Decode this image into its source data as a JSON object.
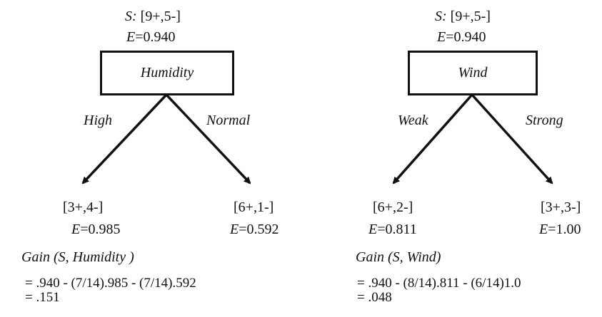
{
  "left_tree": {
    "root_set_prefix": "S:",
    "root_set_value": "[9+,5-]",
    "root_entropy_prefix": "E",
    "root_entropy_value": "=0.940",
    "attribute": "Humidity",
    "branches": [
      {
        "label": "High",
        "set": "[3+,4-]",
        "entropy_prefix": "E",
        "entropy_value": "=0.985"
      },
      {
        "label": "Normal",
        "set": "[6+,1-]",
        "entropy_prefix": "E",
        "entropy_value": "=0.592"
      }
    ],
    "gain_label": "Gain (S,  Humidity  )",
    "gain_formula": "= .940 - (7/14).985 - (7/14).592",
    "gain_result": "= .151"
  },
  "right_tree": {
    "root_set_prefix": "S:",
    "root_set_value": "[9+,5-]",
    "root_entropy_prefix": "E",
    "root_entropy_value": "=0.940",
    "attribute": "Wind",
    "branches": [
      {
        "label": "Weak",
        "set": "[6+,2-]",
        "entropy_prefix": "E",
        "entropy_value": "=0.811"
      },
      {
        "label": "Strong",
        "set": "[3+,3-]",
        "entropy_prefix": "E",
        "entropy_value": "=1.00"
      }
    ],
    "gain_label": "Gain (S, Wind)",
    "gain_formula": "= .940 - (8/14).811 - (6/14)1.0",
    "gain_result": "= .048"
  },
  "colors": {
    "ink": "#111111",
    "background": "#ffffff"
  }
}
